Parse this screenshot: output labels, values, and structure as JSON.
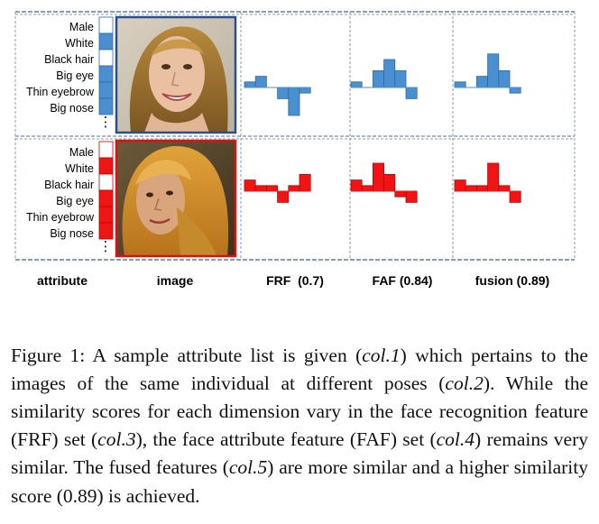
{
  "figure": {
    "colors": {
      "row1": "#4a8fd0",
      "row1_edge": "#2e6aa8",
      "row2": "#f01414",
      "row2_edge": "#c00000",
      "grid": "#8a9db5"
    },
    "rows": [
      {
        "attributes": [
          "Male",
          "White",
          "Black hair",
          "Big eye",
          "Thin eyebrow",
          "Big nose"
        ],
        "ellipsis": "⋮",
        "attribute_bar": [
          0,
          1,
          0,
          1,
          1,
          1
        ],
        "image_desc": "smiling woman with long blond hair (frontal pose)",
        "charts": {
          "FRF": [
            1,
            2,
            0,
            -2,
            -5,
            -1
          ],
          "FAF": [
            1,
            0,
            3,
            5,
            3,
            -2
          ],
          "fusion": [
            1,
            0,
            2,
            6,
            3,
            -1
          ]
        }
      },
      {
        "attributes": [
          "Male",
          "White",
          "Black hair",
          "Big eye",
          "Thin eyebrow",
          "Big nose"
        ],
        "ellipsis": "⋮",
        "attribute_bar": [
          0,
          1,
          0,
          1,
          1,
          1
        ],
        "image_desc": "woman with long blond hair (different pose)",
        "charts": {
          "FRF": [
            2,
            1,
            1,
            -2,
            1,
            3
          ],
          "FAF": [
            2,
            1,
            5,
            3,
            -1,
            -2
          ],
          "fusion": [
            2,
            1,
            1,
            5,
            1,
            -2
          ]
        }
      }
    ],
    "column_labels": [
      "attribute",
      "image",
      "FRF  (0.7)",
      "FAF (0.84)",
      "fusion (0.89)"
    ]
  },
  "caption": {
    "label": "Figure 1:",
    "p1": " A sample attribute list is given (",
    "col1": "col.1",
    "p2": ") which pertains to the images of the same individual at different poses (",
    "col2": "col.2",
    "p3": "). While the similarity scores for each dimension vary in the face recognition feature (FRF) set (",
    "col3": "col.3",
    "p4": "), the face attribute feature (FAF) set (",
    "col4": "col.4",
    "p5": ") remains very similar.  The fused features (",
    "col5": "col.5",
    "p6": ") are more similar and a higher similarity score (0.89) is achieved."
  }
}
